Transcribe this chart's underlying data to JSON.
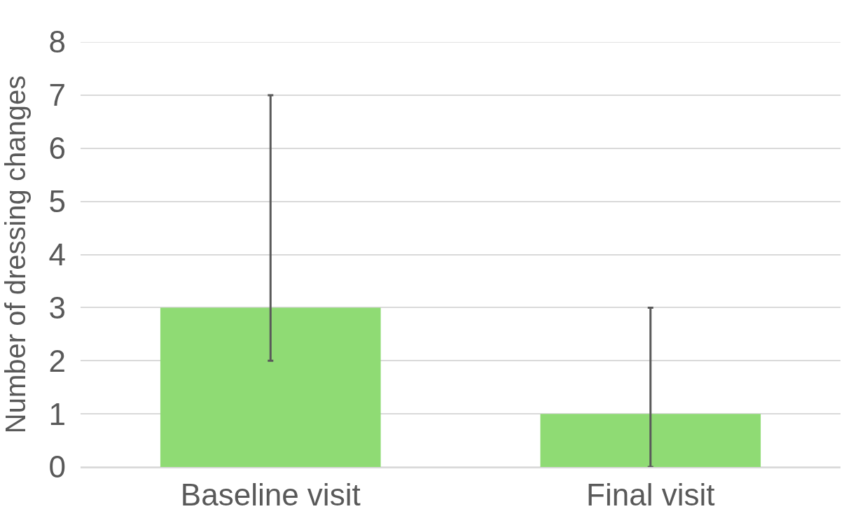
{
  "chart_data": {
    "type": "bar",
    "ylabel": "Number of dressing changes",
    "categories": [
      "Baseline visit",
      "Final visit"
    ],
    "values": [
      3,
      1
    ],
    "color": "#8fdb74",
    "errors": [
      [
        2,
        7
      ],
      [
        0,
        3
      ]
    ],
    "ylim": [
      0,
      8
    ],
    "yticks": [
      0,
      1,
      2,
      3,
      4,
      5,
      6,
      7,
      8
    ],
    "grid": "y"
  }
}
